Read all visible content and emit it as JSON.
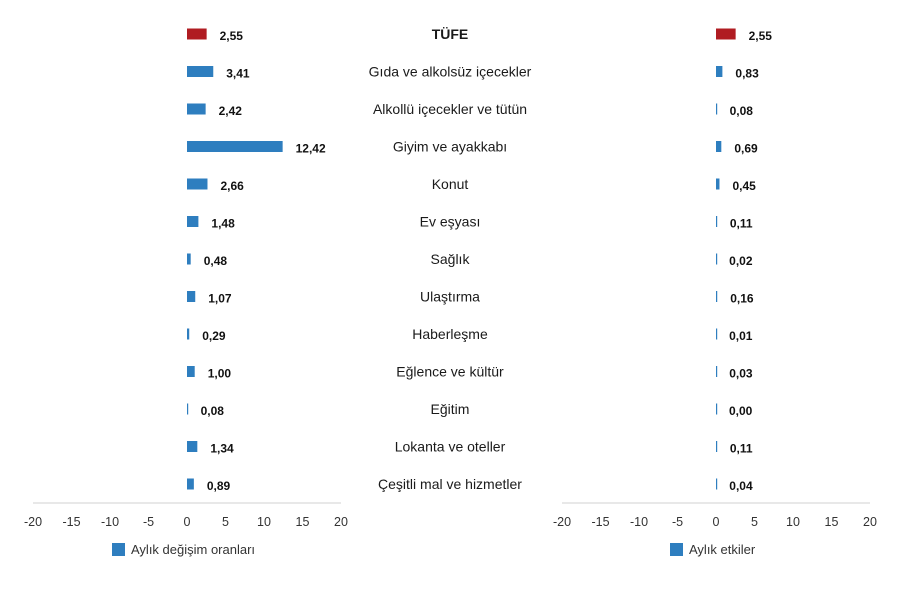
{
  "colors": {
    "highlight": "#b01c22",
    "bar": "#2e7ebf",
    "axis": "#d0d0d0",
    "tick": "#333333"
  },
  "chart_data": [
    {
      "type": "bar",
      "orientation": "horizontal",
      "legend": "Aylık değişim oranları",
      "legend_placement": "bottom-left",
      "xlim": [
        -20,
        20
      ],
      "xticks": [
        "-20",
        "-15",
        "-10",
        "-5",
        "0",
        "5",
        "10",
        "15",
        "20"
      ],
      "grid": false,
      "values": [
        2.55,
        3.41,
        2.42,
        12.42,
        2.66,
        1.48,
        0.48,
        1.07,
        0.29,
        1.0,
        0.08,
        1.34,
        0.89
      ],
      "value_labels": [
        "2,55",
        "3,41",
        "2,42",
        "12,42",
        "2,66",
        "1,48",
        "0,48",
        "1,07",
        "0,29",
        "1,00",
        "0,08",
        "1,34",
        "0,89"
      ]
    },
    {
      "type": "bar",
      "orientation": "horizontal",
      "legend": "Aylık etkiler",
      "legend_placement": "bottom-left",
      "xlim": [
        -20,
        20
      ],
      "xticks": [
        "-20",
        "-15",
        "-10",
        "-5",
        "0",
        "5",
        "10",
        "15",
        "20"
      ],
      "grid": false,
      "values": [
        2.55,
        0.83,
        0.08,
        0.69,
        0.45,
        0.11,
        0.02,
        0.16,
        0.01,
        0.03,
        0.0,
        0.11,
        0.04
      ],
      "value_labels": [
        "2,55",
        "0,83",
        "0,08",
        "0,69",
        "0,45",
        "0,11",
        "0,02",
        "0,16",
        "0,01",
        "0,03",
        "0,00",
        "0,11",
        "0,04"
      ]
    }
  ],
  "categories": [
    "TÜFE",
    "Gıda ve alkolsüz içecekler",
    "Alkollü içecekler ve tütün",
    "Giyim ve ayakkabı",
    "Konut",
    "Ev eşyası",
    "Sağlık",
    "Ulaştırma",
    "Haberleşme",
    "Eğlence ve kültür",
    "Eğitim",
    "Lokanta ve oteller",
    "Çeşitli mal ve hizmetler"
  ],
  "highlight_category": "TÜFE"
}
